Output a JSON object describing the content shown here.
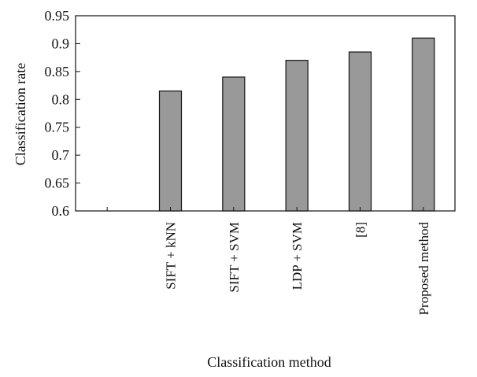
{
  "chart_data": {
    "type": "bar",
    "categories": [
      "",
      "SIFT + kNN",
      "SIFT + SVM",
      "LDP + SVM",
      "[8]",
      "Proposed method"
    ],
    "values": [
      null,
      0.815,
      0.84,
      0.87,
      0.885,
      0.91
    ],
    "xlabel": "Classification method",
    "ylabel": "Classification rate",
    "ylim": [
      0.6,
      0.95
    ],
    "yticks": [
      "0.6",
      "0.65",
      "0.7",
      "0.75",
      "0.8",
      "0.85",
      "0.9",
      "0.95"
    ],
    "grid": false,
    "legend": "none",
    "bar_color": "#999999",
    "bar_edge_color": "#111111"
  }
}
